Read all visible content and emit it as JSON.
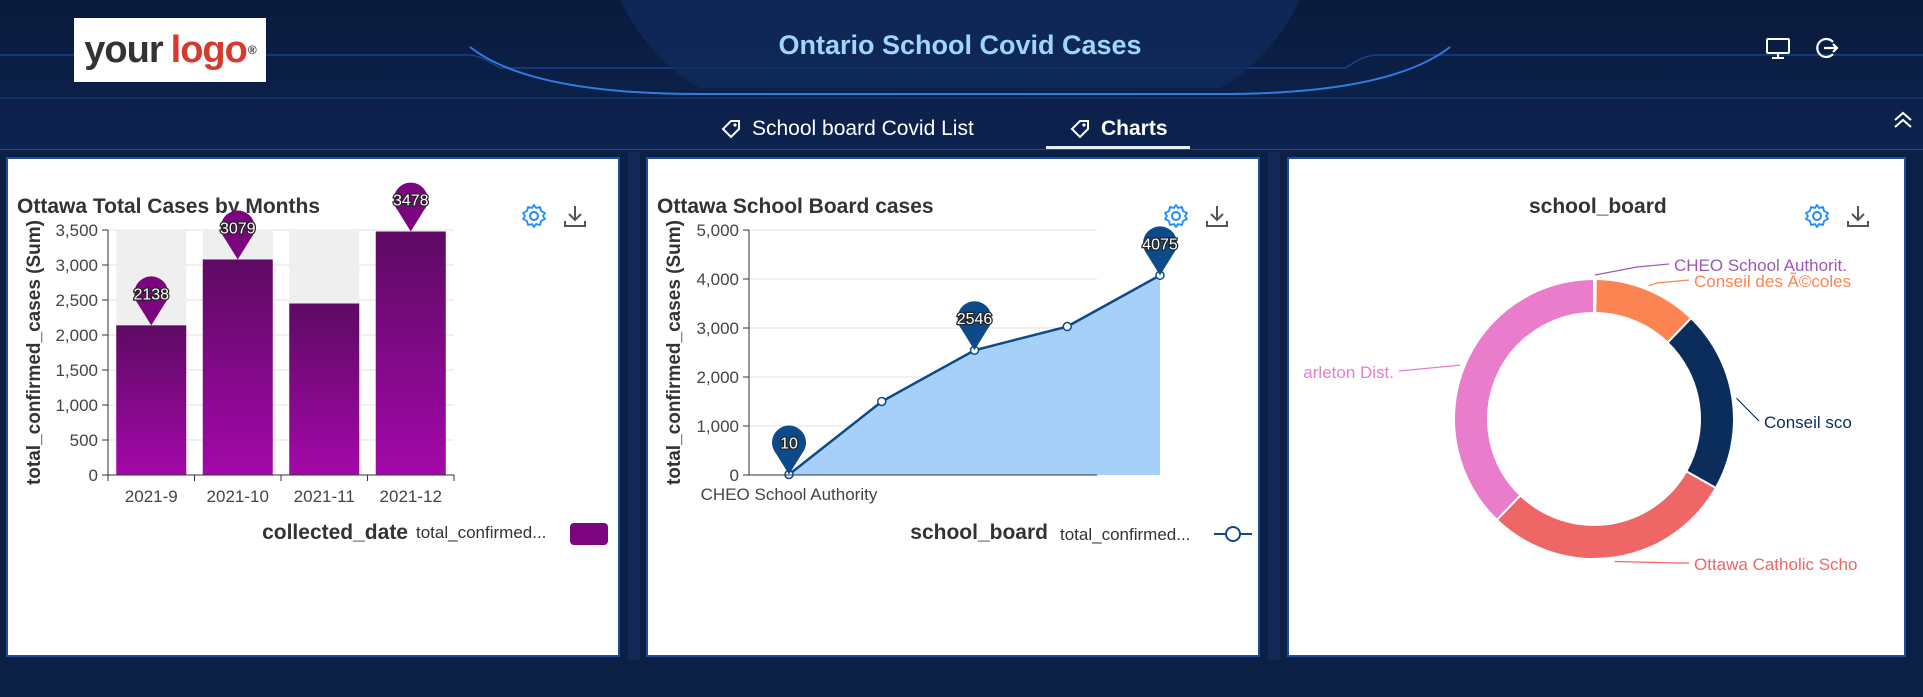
{
  "header": {
    "logo_your": "your",
    "logo_logo": "logo",
    "logo_reg": "®",
    "title": "Ontario School Covid Cases",
    "icons": [
      "monitor-icon",
      "logout-icon"
    ]
  },
  "tabs": [
    {
      "label": "School board Covid List",
      "icon": "tag-icon",
      "active": false
    },
    {
      "label": "Charts",
      "icon": "tag-icon",
      "active": true
    }
  ],
  "colors": {
    "accent": "#1e4d9c",
    "title_blue": "#9fd6ff",
    "bar_purple": "#7b057f",
    "line_blue": "#0d4a8a",
    "area_blue": "#a6d0f7",
    "icon_blue": "#1a8cff"
  },
  "panels": [
    {
      "title": "Ottawa Total Cases by Months",
      "icons": [
        "gear-icon",
        "download-icon"
      ]
    },
    {
      "title": "Ottawa School Board cases",
      "icons": [
        "gear-icon",
        "download-icon"
      ]
    },
    {
      "title": "school_board",
      "icons": [
        "gear-icon",
        "download-icon"
      ]
    }
  ],
  "chart_data": [
    {
      "type": "bar",
      "title": "Ottawa Total Cases by Months",
      "categories": [
        "2021-9",
        "2021-10",
        "2021-11",
        "2021-12"
      ],
      "values": [
        2138,
        3079,
        2450,
        3478
      ],
      "markers": [
        "2138",
        "3079",
        "",
        "3478"
      ],
      "ylabel": "total_confirmed_cases (Sum)",
      "xlabel": "collected_date",
      "legend": "total_confirmed...",
      "ylim": [
        0,
        3500
      ],
      "yticks": [
        "0",
        "500",
        "1,000",
        "1,500",
        "2,000",
        "2,500",
        "3,000",
        "3,500"
      ]
    },
    {
      "type": "area",
      "title": "Ottawa School Board cases",
      "x_first_label": "CHEO School Authority",
      "values": [
        10,
        1500,
        2546,
        3030,
        4075
      ],
      "markers": [
        "10",
        "",
        "2546",
        "",
        "4075"
      ],
      "ylabel": "total_confirmed_cases (Sum)",
      "xlabel": "school_board",
      "legend": "total_confirmed...",
      "ylim": [
        0,
        5000
      ],
      "yticks": [
        "0",
        "1,000",
        "2,000",
        "3,000",
        "4,000",
        "5,000"
      ]
    },
    {
      "type": "pie",
      "title": "school_board",
      "slices": [
        {
          "label": "CHEO School Authorit.",
          "value": 0.2,
          "color": "#9b59b6"
        },
        {
          "label": "Conseil des Ã©coles",
          "value": 12,
          "color": "#fc8452"
        },
        {
          "label": "Conseil sco",
          "value": 21,
          "color": "#0a2d5c"
        },
        {
          "label": "Ottawa Catholic Scho",
          "value": 29,
          "color": "#ee6666"
        },
        {
          "label": "arleton Dist.",
          "value": 37.8,
          "color": "#ea7ccc"
        }
      ]
    }
  ]
}
